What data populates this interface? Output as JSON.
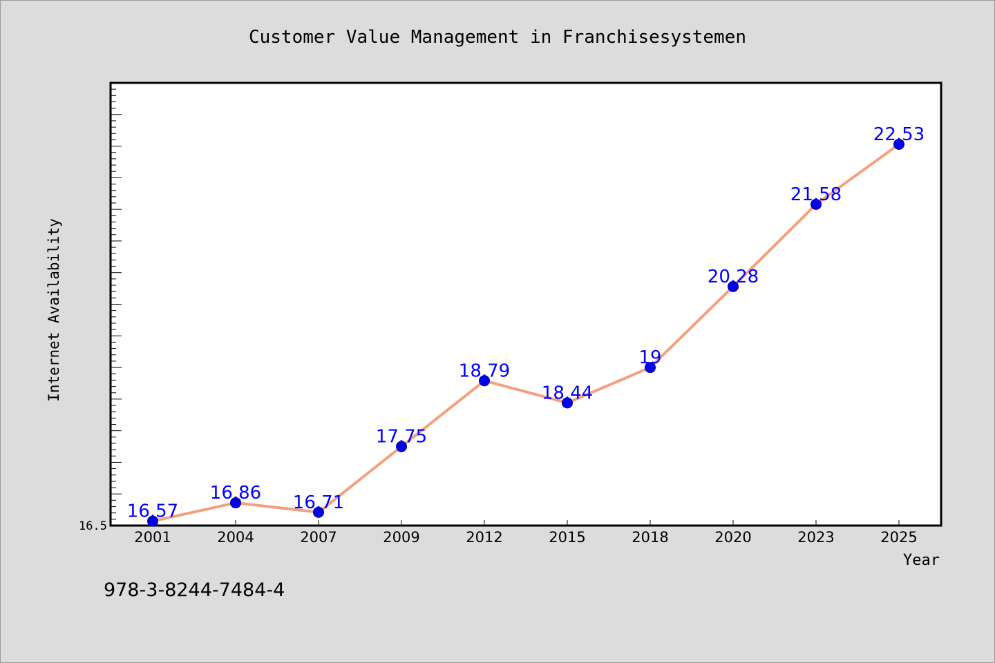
{
  "chart_data": {
    "type": "line",
    "title": "Customer Value Management in Franchisesystemen",
    "xlabel": "Year",
    "ylabel": "Internet Availability",
    "categories": [
      "2001",
      "2004",
      "2007",
      "2009",
      "2012",
      "2015",
      "2018",
      "2020",
      "2023",
      "2025"
    ],
    "series": [
      {
        "values": [
          16.57,
          16.86,
          16.71,
          17.75,
          18.79,
          18.44,
          19,
          20.28,
          21.58,
          22.53
        ],
        "data_labels": [
          "16.57",
          "16.86",
          "16.71",
          "17.75",
          "18.79",
          "18.44",
          "19",
          "20.28",
          "21.58",
          "22.53"
        ]
      }
    ],
    "y_tick_labels": [
      "16.5"
    ],
    "ylim": [
      16.5,
      23.5
    ],
    "grid": false,
    "legend": "none",
    "annotation": "978-3-8244-7484-4",
    "colors": {
      "background": "#dcdcdc",
      "plot_area": "#ffffff",
      "line": "#f4a07c",
      "marker": "#0000ee",
      "data_label": "#0000ff",
      "axis": "#000000"
    }
  }
}
